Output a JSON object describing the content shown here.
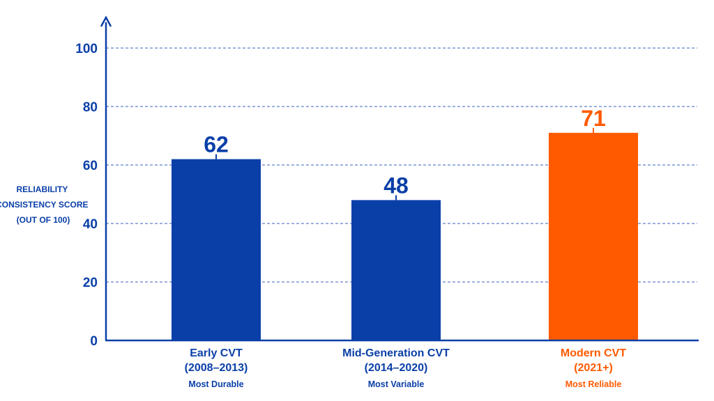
{
  "chart_data": {
    "type": "bar",
    "ylabel_lines": [
      "RELIABILITY",
      "CONSISTENCY SCORE",
      "(OUT OF 100)"
    ],
    "ylim": [
      0,
      110
    ],
    "yticks": [
      0,
      20,
      40,
      60,
      80,
      100
    ],
    "grid": true,
    "categories": [
      {
        "line1": "Early CVT",
        "line2": "(2008–2013)",
        "subtitle": "Most Durable"
      },
      {
        "line1": "Mid-Generation CVT",
        "line2": "(2014–2020)",
        "subtitle": "Most Variable"
      },
      {
        "line1": "Modern CVT",
        "line2": "(2021+)",
        "subtitle": "Most Reliable"
      }
    ],
    "values": [
      62,
      48,
      71
    ],
    "colors": [
      "#0a3fa8",
      "#0a3fa8",
      "#ff5a00"
    ],
    "axis_color": "#0a3fa8",
    "grid_color": "#3a5fbf"
  }
}
